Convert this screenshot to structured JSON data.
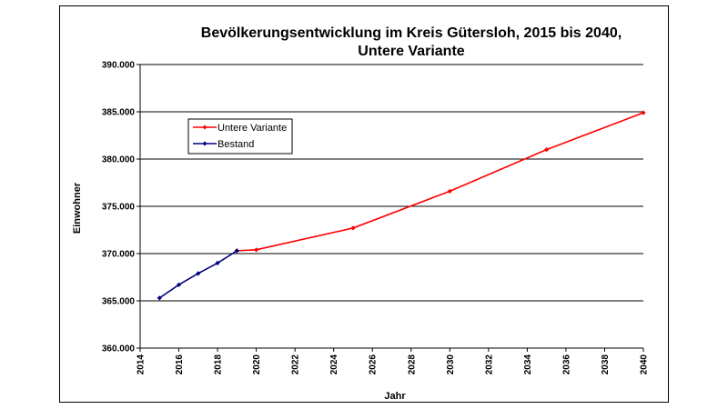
{
  "chart_data": {
    "type": "line",
    "title_lines": [
      "Bevölkerungsentwicklung im Kreis Gütersloh, 2015 bis 2040,",
      "Untere Variante"
    ],
    "xlabel": "Jahr",
    "ylabel": "Einwohner",
    "xlim": [
      2014,
      2040
    ],
    "ylim": [
      360000,
      390000
    ],
    "x_ticks": [
      2014,
      2016,
      2018,
      2020,
      2022,
      2024,
      2026,
      2028,
      2030,
      2032,
      2034,
      2036,
      2038,
      2040
    ],
    "y_ticks": [
      360000,
      365000,
      370000,
      375000,
      380000,
      385000,
      390000
    ],
    "y_tick_labels": [
      "360.000",
      "365.000",
      "370.000",
      "375.000",
      "380.000",
      "385.000",
      "390.000"
    ],
    "grid": "horizontal",
    "legend_position": "top-left",
    "series": [
      {
        "name": "Untere Variante",
        "color": "#ff0000",
        "x": [
          2019,
          2020,
          2025,
          2030,
          2035,
          2040
        ],
        "y": [
          370300,
          370400,
          372700,
          376600,
          381000,
          384900
        ]
      },
      {
        "name": "Bestand",
        "color": "#000080",
        "x": [
          2015,
          2016,
          2017,
          2018,
          2019
        ],
        "y": [
          365300,
          366700,
          367900,
          369000,
          370300
        ]
      }
    ]
  }
}
